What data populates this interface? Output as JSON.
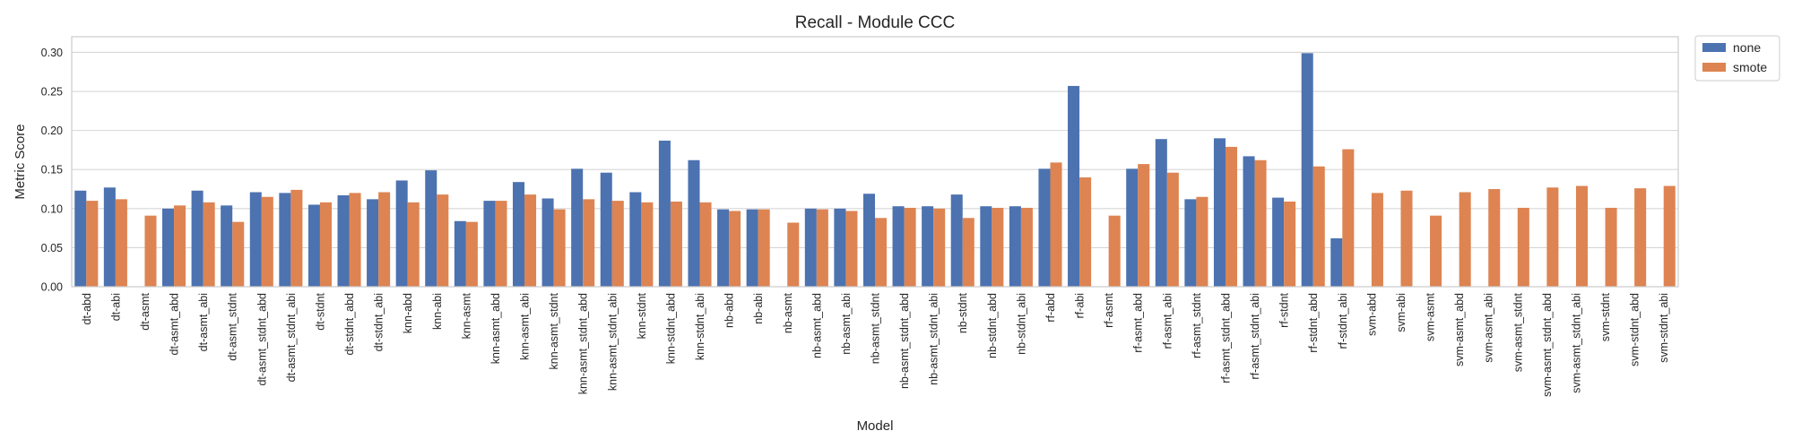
{
  "chart_data": {
    "type": "bar",
    "title": "Recall - Module CCC",
    "xlabel": "Model",
    "ylabel": "Metric Score",
    "ylim": [
      0,
      0.32
    ],
    "yticks": [
      0.0,
      0.05,
      0.1,
      0.15,
      0.2,
      0.25,
      0.3
    ],
    "ytick_labels": [
      "0.00",
      "0.05",
      "0.10",
      "0.15",
      "0.20",
      "0.25",
      "0.30"
    ],
    "grid": true,
    "legend_position": "outside-top-right",
    "categories": [
      "dt-abd",
      "dt-abi",
      "dt-asmt",
      "dt-asmt_abd",
      "dt-asmt_abi",
      "dt-asmt_stdnt",
      "dt-asmt_stdnt_abd",
      "dt-asmt_stdnt_abi",
      "dt-stdnt",
      "dt-stdnt_abd",
      "dt-stdnt_abi",
      "knn-abd",
      "knn-abi",
      "knn-asmt",
      "knn-asmt_abd",
      "knn-asmt_abi",
      "knn-asmt_stdnt",
      "knn-asmt_stdnt_abd",
      "knn-asmt_stdnt_abi",
      "knn-stdnt",
      "knn-stdnt_abd",
      "knn-stdnt_abi",
      "nb-abd",
      "nb-abi",
      "nb-asmt",
      "nb-asmt_abd",
      "nb-asmt_abi",
      "nb-asmt_stdnt",
      "nb-asmt_stdnt_abd",
      "nb-asmt_stdnt_abi",
      "nb-stdnt",
      "nb-stdnt_abd",
      "nb-stdnt_abi",
      "rf-abd",
      "rf-abi",
      "rf-asmt",
      "rf-asmt_abd",
      "rf-asmt_abi",
      "rf-asmt_stdnt",
      "rf-asmt_stdnt_abd",
      "rf-asmt_stdnt_abi",
      "rf-stdnt",
      "rf-stdnt_abd",
      "rf-stdnt_abi",
      "svm-abd",
      "svm-abi",
      "svm-asmt",
      "svm-asmt_abd",
      "svm-asmt_abi",
      "svm-asmt_stdnt",
      "svm-asmt_stdnt_abd",
      "svm-asmt_stdnt_abi",
      "svm-stdnt",
      "svm-stdnt_abd",
      "svm-stdnt_abi"
    ],
    "series": [
      {
        "name": "none",
        "color": "#4c72b0",
        "values": [
          0.123,
          0.127,
          null,
          0.1,
          0.123,
          0.104,
          0.121,
          0.12,
          0.105,
          0.117,
          0.112,
          0.136,
          0.149,
          0.084,
          0.11,
          0.134,
          0.113,
          0.151,
          0.146,
          0.121,
          0.187,
          0.162,
          0.099,
          0.099,
          null,
          0.1,
          0.1,
          0.119,
          0.103,
          0.103,
          0.118,
          0.103,
          0.103,
          0.151,
          0.257,
          null,
          0.151,
          0.189,
          0.112,
          0.19,
          0.167,
          0.114,
          0.299,
          0.062,
          null,
          null,
          null,
          null,
          null,
          null,
          null,
          null,
          null,
          null,
          null
        ]
      },
      {
        "name": "smote",
        "color": "#dd8452",
        "values": [
          0.11,
          0.112,
          0.091,
          0.104,
          0.108,
          0.083,
          0.115,
          0.124,
          0.108,
          0.12,
          0.121,
          0.108,
          0.118,
          0.083,
          0.11,
          0.118,
          0.099,
          0.112,
          0.11,
          0.108,
          0.109,
          0.108,
          0.097,
          0.099,
          0.082,
          0.099,
          0.097,
          0.088,
          0.101,
          0.1,
          0.088,
          0.101,
          0.101,
          0.159,
          0.14,
          0.091,
          0.157,
          0.146,
          0.115,
          0.179,
          0.162,
          0.109,
          0.154,
          0.176,
          0.12,
          0.123,
          0.091,
          0.121,
          0.125,
          0.101,
          0.127,
          0.129,
          0.101,
          0.126,
          0.129
        ]
      }
    ]
  }
}
